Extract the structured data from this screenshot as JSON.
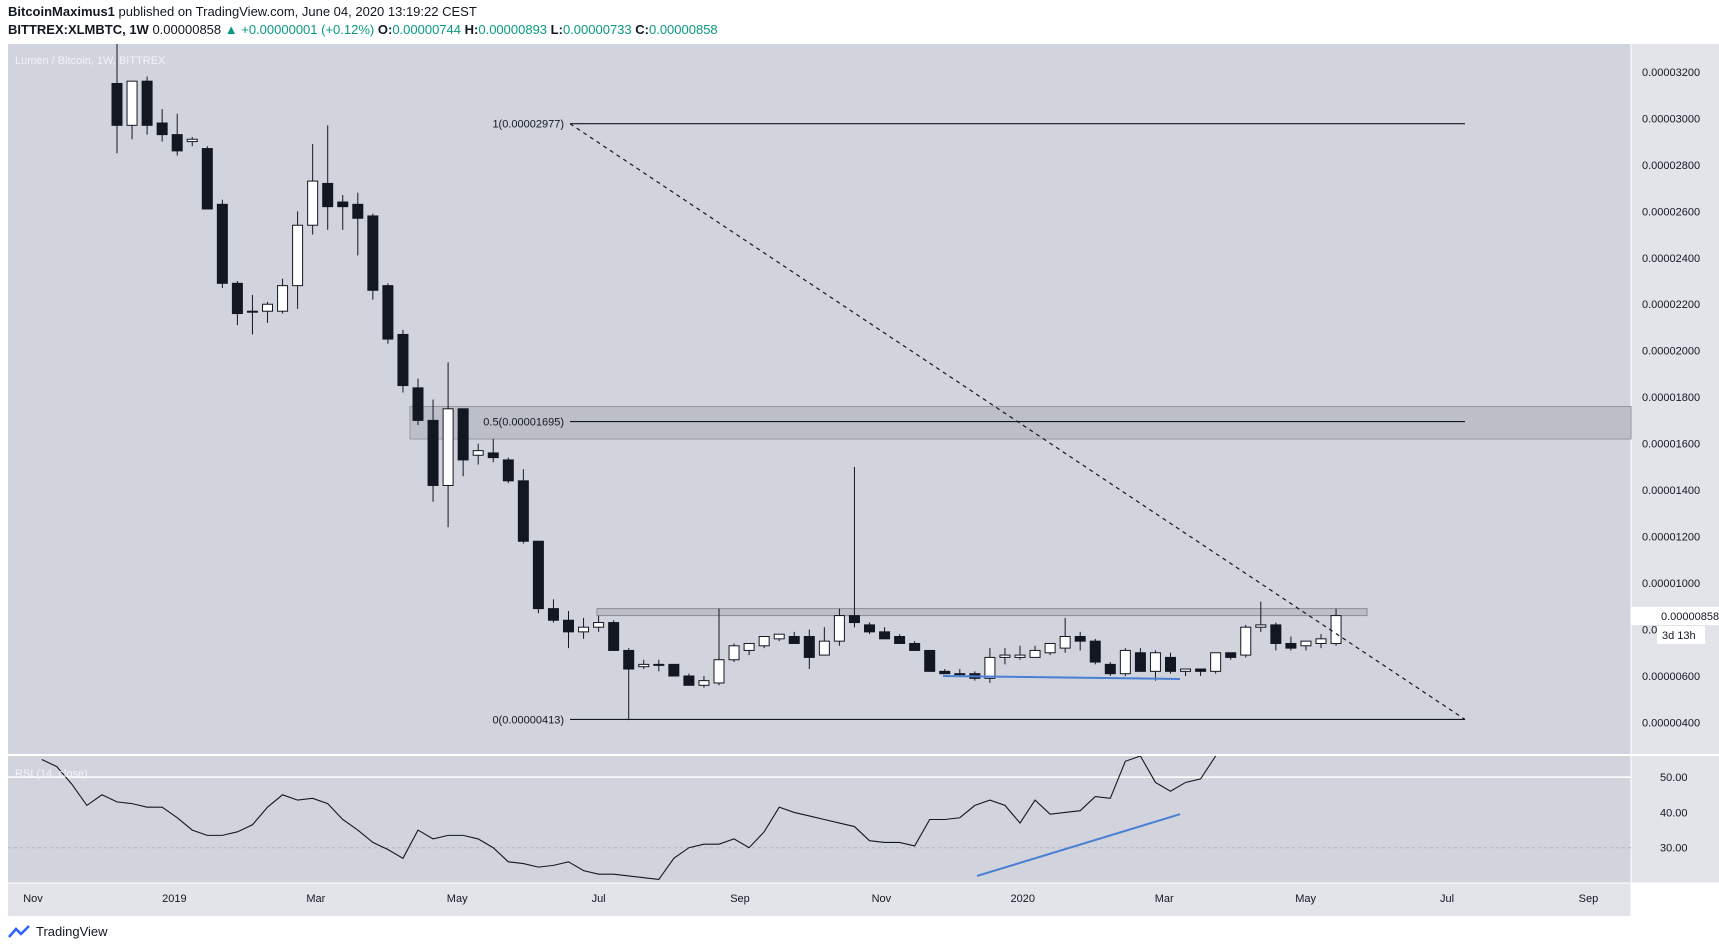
{
  "header": {
    "author": "BitcoinMaximus1",
    "published": "published on TradingView.com, June 04, 2020 13:19:22 CEST",
    "symbol": "BITTREX:XLMBTC, 1W",
    "last": "0.00000858",
    "change": "▲ +0.00000001 (+0.12%)",
    "o_label": "O:",
    "o_value": "0.00000744",
    "h_label": "H:",
    "h_value": "0.00000893",
    "l_label": "L:",
    "l_value": "0.00000733",
    "c_label": "C:",
    "c_value": "0.00000858"
  },
  "footer": {
    "brand": "TradingView"
  },
  "colors": {
    "plot_bg": "#d1d4dc",
    "bear": "#131722",
    "bull": "#ffffff",
    "accent_line": "#4a7fd4",
    "zone": "#bcbfc7"
  },
  "chart_data": {
    "type": "candlestick",
    "title": "Lumen / Bitcoin, 1W, BITTREX",
    "ylim": [
      2.6e-06,
      3.32e-05
    ],
    "y_ticks": [
      "0.00000400",
      "0.00000600",
      "0.00000800",
      "0.00001000",
      "0.00001200",
      "0.00001400",
      "0.00001600",
      "0.00001800",
      "0.00002000",
      "0.00002200",
      "0.00002400",
      "0.00002600",
      "0.00002800",
      "0.00003000",
      "0.00003200"
    ],
    "x_labels": [
      "Nov",
      "2019",
      "Mar",
      "May",
      "Jul",
      "Sep",
      "Nov",
      "2020",
      "Mar",
      "May",
      "Jul",
      "Sep"
    ],
    "last_price_label": "0.00000858",
    "countdown_label": "3d 13h",
    "candles_ohlc": [
      [
        3.15,
        3.35,
        2.85,
        2.97
      ],
      [
        2.97,
        3.05,
        2.91,
        3.16
      ],
      [
        3.16,
        3.18,
        2.93,
        2.97
      ],
      [
        2.98,
        3.04,
        2.9,
        2.93
      ],
      [
        2.93,
        3.02,
        2.84,
        2.86
      ],
      [
        2.9,
        2.92,
        2.88,
        2.91
      ],
      [
        2.87,
        2.88,
        2.61,
        2.61
      ],
      [
        2.63,
        2.65,
        2.27,
        2.29
      ],
      [
        2.29,
        2.3,
        2.11,
        2.16
      ],
      [
        2.17,
        2.24,
        2.07,
        2.17
      ],
      [
        2.17,
        2.21,
        2.12,
        2.2
      ],
      [
        2.17,
        2.31,
        2.16,
        2.28
      ],
      [
        2.28,
        2.6,
        2.18,
        2.54
      ],
      [
        2.54,
        2.89,
        2.5,
        2.73
      ],
      [
        2.72,
        2.97,
        2.52,
        2.62
      ],
      [
        2.64,
        2.67,
        2.52,
        2.62
      ],
      [
        2.63,
        2.68,
        2.41,
        2.57
      ],
      [
        2.58,
        2.59,
        2.22,
        2.26
      ],
      [
        2.28,
        2.29,
        2.03,
        2.05
      ],
      [
        2.07,
        2.09,
        1.82,
        1.85
      ],
      [
        1.84,
        1.88,
        1.68,
        1.7
      ],
      [
        1.7,
        1.79,
        1.35,
        1.42
      ],
      [
        1.42,
        1.95,
        1.24,
        1.75
      ],
      [
        1.75,
        1.75,
        1.46,
        1.53
      ],
      [
        1.55,
        1.6,
        1.51,
        1.57
      ],
      [
        1.56,
        1.62,
        1.52,
        1.54
      ],
      [
        1.53,
        1.54,
        1.43,
        1.44
      ],
      [
        1.44,
        1.49,
        1.17,
        1.18
      ],
      [
        1.18,
        1.18,
        0.87,
        0.89
      ],
      [
        0.89,
        0.93,
        0.83,
        0.84
      ],
      [
        0.84,
        0.88,
        0.72,
        0.79
      ],
      [
        0.79,
        0.85,
        0.76,
        0.81
      ],
      [
        0.81,
        0.86,
        0.79,
        0.83
      ],
      [
        0.83,
        0.84,
        0.71,
        0.71
      ],
      [
        0.71,
        0.72,
        0.41,
        0.63
      ],
      [
        0.64,
        0.67,
        0.63,
        0.65
      ],
      [
        0.65,
        0.67,
        0.62,
        0.65
      ],
      [
        0.65,
        0.65,
        0.6,
        0.6
      ],
      [
        0.6,
        0.61,
        0.56,
        0.56
      ],
      [
        0.56,
        0.6,
        0.55,
        0.58
      ],
      [
        0.57,
        0.89,
        0.56,
        0.67
      ],
      [
        0.67,
        0.74,
        0.66,
        0.73
      ],
      [
        0.71,
        0.74,
        0.69,
        0.74
      ],
      [
        0.73,
        0.76,
        0.72,
        0.77
      ],
      [
        0.76,
        0.78,
        0.75,
        0.78
      ],
      [
        0.77,
        0.79,
        0.74,
        0.74
      ],
      [
        0.77,
        0.8,
        0.63,
        0.68
      ],
      [
        0.69,
        0.81,
        0.69,
        0.75
      ],
      [
        0.75,
        0.89,
        0.73,
        0.86
      ],
      [
        0.86,
        1.5,
        0.81,
        0.83
      ],
      [
        0.82,
        0.83,
        0.78,
        0.79
      ],
      [
        0.79,
        0.81,
        0.76,
        0.76
      ],
      [
        0.77,
        0.78,
        0.74,
        0.74
      ],
      [
        0.74,
        0.75,
        0.71,
        0.71
      ],
      [
        0.71,
        0.71,
        0.62,
        0.62
      ],
      [
        0.62,
        0.63,
        0.61,
        0.61
      ],
      [
        0.61,
        0.63,
        0.6,
        0.61
      ],
      [
        0.61,
        0.62,
        0.58,
        0.59
      ],
      [
        0.59,
        0.72,
        0.57,
        0.68
      ],
      [
        0.68,
        0.72,
        0.65,
        0.69
      ],
      [
        0.68,
        0.73,
        0.67,
        0.69
      ],
      [
        0.68,
        0.73,
        0.68,
        0.71
      ],
      [
        0.7,
        0.74,
        0.69,
        0.74
      ],
      [
        0.72,
        0.85,
        0.7,
        0.77
      ],
      [
        0.77,
        0.79,
        0.71,
        0.75
      ],
      [
        0.75,
        0.76,
        0.65,
        0.66
      ],
      [
        0.65,
        0.66,
        0.6,
        0.61
      ],
      [
        0.61,
        0.72,
        0.6,
        0.71
      ],
      [
        0.7,
        0.72,
        0.63,
        0.62
      ],
      [
        0.62,
        0.71,
        0.58,
        0.7
      ],
      [
        0.68,
        0.7,
        0.61,
        0.62
      ],
      [
        0.62,
        0.63,
        0.6,
        0.63
      ],
      [
        0.63,
        0.63,
        0.6,
        0.62
      ],
      [
        0.62,
        0.7,
        0.61,
        0.7
      ],
      [
        0.7,
        0.7,
        0.67,
        0.68
      ],
      [
        0.69,
        0.82,
        0.68,
        0.81
      ],
      [
        0.81,
        0.92,
        0.79,
        0.82
      ],
      [
        0.82,
        0.83,
        0.71,
        0.74
      ],
      [
        0.74,
        0.77,
        0.71,
        0.72
      ],
      [
        0.73,
        0.75,
        0.71,
        0.75
      ],
      [
        0.74,
        0.78,
        0.72,
        0.76
      ],
      [
        0.74,
        0.89,
        0.73,
        0.86
      ]
    ],
    "price_scale_note": "candle values are in units of 0.00001 BTC",
    "fib_levels": [
      {
        "label": "1(0.00002977)",
        "value": 2.977e-05
      },
      {
        "label": "0.5(0.00001695)",
        "value": 1.695e-05
      },
      {
        "label": "0(0.00000413)",
        "value": 4.13e-06
      }
    ],
    "resistance_zone": [
      1.62e-05,
      1.76e-05
    ],
    "range_top_zone": [
      8.6e-06,
      8.9e-06
    ],
    "support_line": 6e-06,
    "rsi": {
      "title": "RSI (14, close)",
      "ylim": [
        20,
        56
      ],
      "y_ticks": [
        "30.00",
        "40.00",
        "50.00"
      ],
      "values": [
        55,
        53,
        48,
        42,
        45,
        43,
        42.5,
        41.5,
        41.5,
        38.5,
        35,
        33.5,
        33.5,
        34.5,
        36.5,
        41.5,
        45,
        43.5,
        44,
        42.5,
        38,
        35,
        31.5,
        29.5,
        27,
        35,
        32.5,
        33.5,
        33.5,
        32.5,
        30,
        26,
        25.5,
        24.5,
        25,
        26,
        23.5,
        22.5,
        22.5,
        22,
        21.5,
        21,
        27,
        30,
        31,
        31,
        32.5,
        30,
        34.5,
        41.5,
        40,
        39,
        38,
        37,
        36,
        32,
        31.5,
        31.5,
        30.5,
        38,
        38,
        38.5,
        42,
        43.5,
        42,
        37,
        43.5,
        39.5,
        40,
        40.5,
        44.5,
        44,
        54.5,
        56,
        48.5,
        46,
        48.5,
        49.5,
        56
      ]
    }
  }
}
